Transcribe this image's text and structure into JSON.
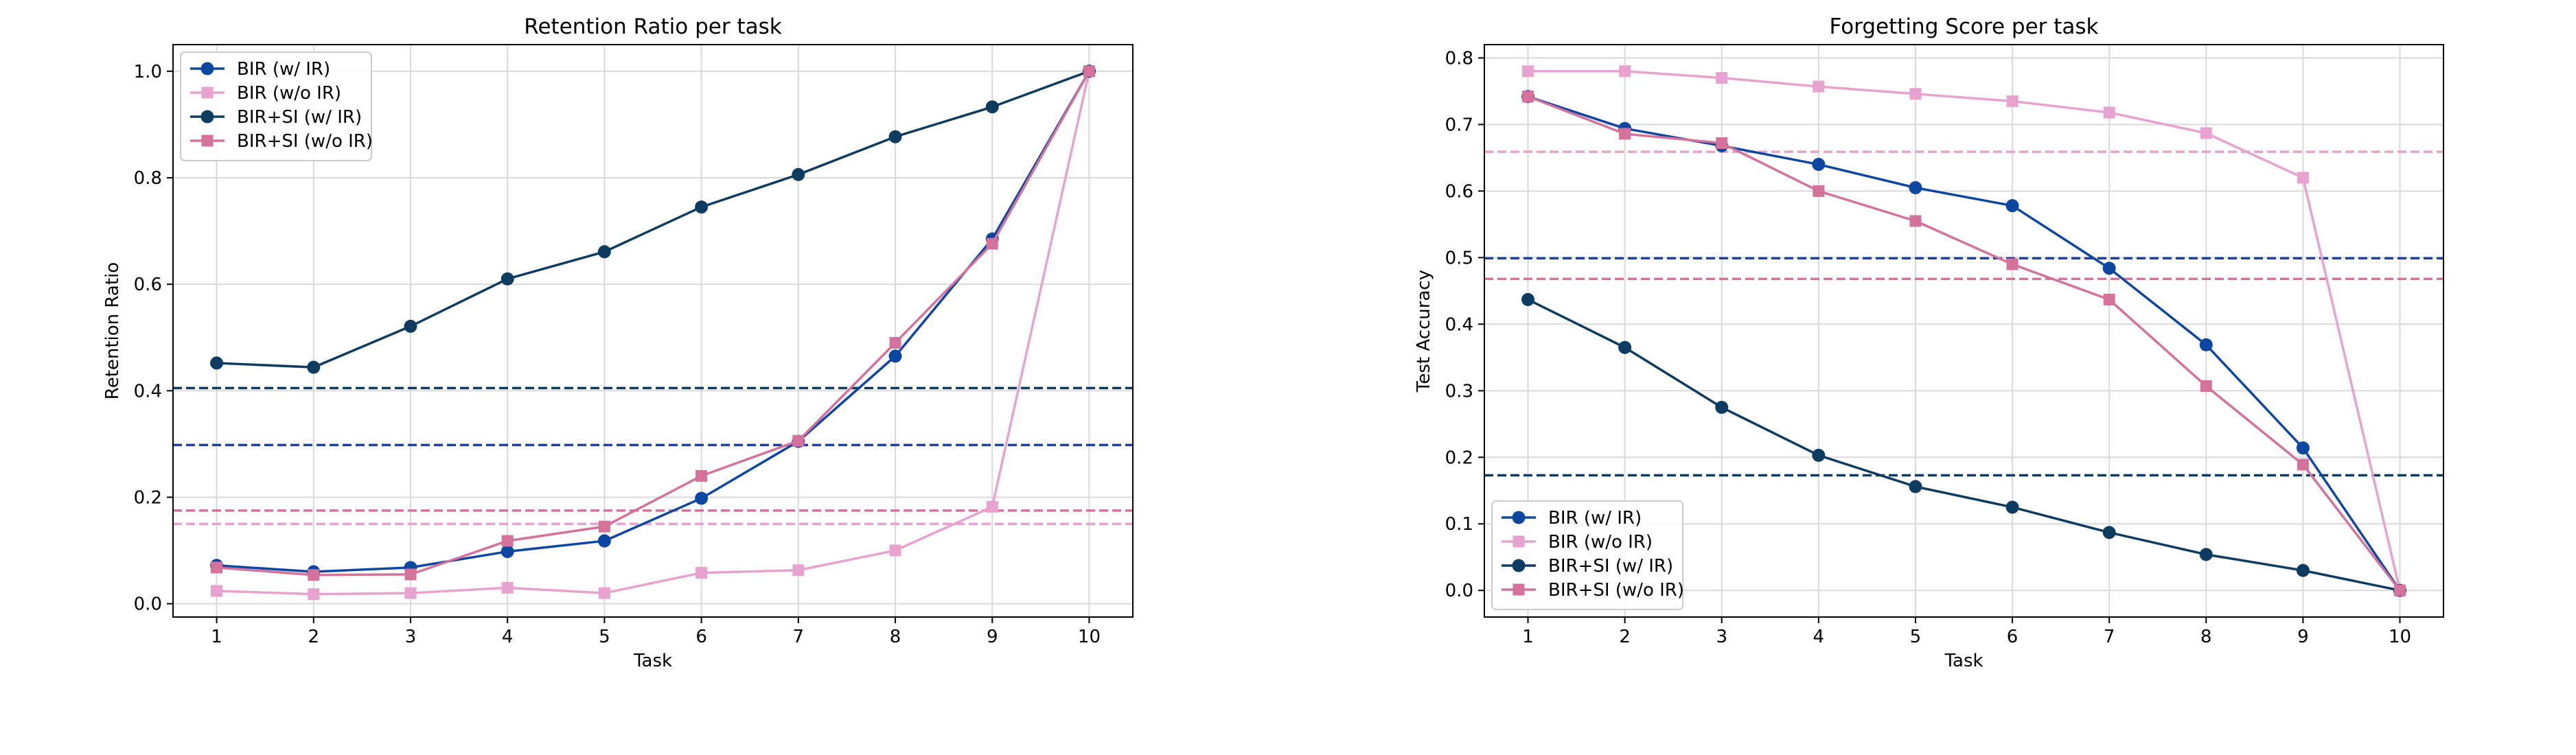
{
  "chart_data": [
    {
      "type": "line",
      "title": "Retention Ratio per task",
      "xlabel": "Task",
      "ylabel": "Retention Ratio",
      "x": [
        1,
        2,
        3,
        4,
        5,
        6,
        7,
        8,
        9,
        10
      ],
      "xlim": [
        0.55,
        10.45
      ],
      "ylim": [
        -0.025,
        1.05
      ],
      "xticks": [
        "1",
        "2",
        "3",
        "4",
        "5",
        "6",
        "7",
        "8",
        "9",
        "10"
      ],
      "yticks": [
        0.0,
        0.2,
        0.4,
        0.6,
        0.8,
        1.0
      ],
      "ytick_labels": [
        "0.0",
        "0.2",
        "0.4",
        "0.6",
        "0.8",
        "1.0"
      ],
      "grid": true,
      "legend": "top-left",
      "series": [
        {
          "name": "BIR (w/ IR)",
          "color": "#0d47a1",
          "marker": "circle",
          "values": [
            0.072,
            0.06,
            0.068,
            0.098,
            0.118,
            0.198,
            0.305,
            0.465,
            0.685,
            1.0
          ]
        },
        {
          "name": "BIR (w/o IR)",
          "color": "#e8a2d0",
          "marker": "square",
          "values": [
            0.024,
            0.018,
            0.02,
            0.03,
            0.02,
            0.058,
            0.063,
            0.1,
            0.182,
            1.0
          ]
        },
        {
          "name": "BIR+SI (w/ IR)",
          "color": "#0e3c61",
          "marker": "circle",
          "values": [
            0.452,
            0.444,
            0.521,
            0.61,
            0.661,
            0.745,
            0.806,
            0.877,
            0.933,
            1.0
          ]
        },
        {
          "name": "BIR+SI (w/o IR)",
          "color": "#d4729c",
          "marker": "square",
          "values": [
            0.068,
            0.054,
            0.055,
            0.118,
            0.145,
            0.24,
            0.306,
            0.49,
            0.676,
            1.0
          ]
        }
      ],
      "reference_lines": [
        {
          "y": 0.405,
          "color": "#0e3c61"
        },
        {
          "y": 0.298,
          "color": "#1f3fa0"
        },
        {
          "y": 0.175,
          "color": "#d4729c"
        },
        {
          "y": 0.15,
          "color": "#e8a2d0"
        }
      ]
    },
    {
      "type": "line",
      "title": "Forgetting Score per task",
      "xlabel": "Task",
      "ylabel": "Test Accuracy",
      "x": [
        1,
        2,
        3,
        4,
        5,
        6,
        7,
        8,
        9,
        10
      ],
      "xlim": [
        0.55,
        10.45
      ],
      "ylim": [
        -0.04,
        0.82
      ],
      "xticks": [
        "1",
        "2",
        "3",
        "4",
        "5",
        "6",
        "7",
        "8",
        "9",
        "10"
      ],
      "yticks": [
        0.0,
        0.1,
        0.2,
        0.3,
        0.4,
        0.5,
        0.6,
        0.7,
        0.8
      ],
      "ytick_labels": [
        "0.0",
        "0.1",
        "0.2",
        "0.3",
        "0.4",
        "0.5",
        "0.6",
        "0.7",
        "0.8"
      ],
      "grid": true,
      "legend": "bottom-left",
      "series": [
        {
          "name": "BIR (w/ IR)",
          "color": "#0d47a1",
          "marker": "circle",
          "values": [
            0.742,
            0.694,
            0.668,
            0.64,
            0.605,
            0.578,
            0.484,
            0.369,
            0.214,
            0.0
          ]
        },
        {
          "name": "BIR (w/o IR)",
          "color": "#e8a2d0",
          "marker": "square",
          "values": [
            0.78,
            0.78,
            0.77,
            0.757,
            0.746,
            0.735,
            0.718,
            0.687,
            0.62,
            0.0
          ]
        },
        {
          "name": "BIR+SI (w/ IR)",
          "color": "#0e3c61",
          "marker": "circle",
          "values": [
            0.437,
            0.365,
            0.275,
            0.203,
            0.156,
            0.125,
            0.087,
            0.054,
            0.03,
            0.0
          ]
        },
        {
          "name": "BIR+SI (w/o IR)",
          "color": "#d4729c",
          "marker": "square",
          "values": [
            0.742,
            0.686,
            0.672,
            0.6,
            0.555,
            0.49,
            0.437,
            0.307,
            0.189,
            0.0
          ]
        }
      ],
      "reference_lines": [
        {
          "y": 0.659,
          "color": "#e8a2d0"
        },
        {
          "y": 0.499,
          "color": "#1f3fa0"
        },
        {
          "y": 0.468,
          "color": "#d4729c"
        },
        {
          "y": 0.173,
          "color": "#0e3c61"
        }
      ]
    }
  ]
}
